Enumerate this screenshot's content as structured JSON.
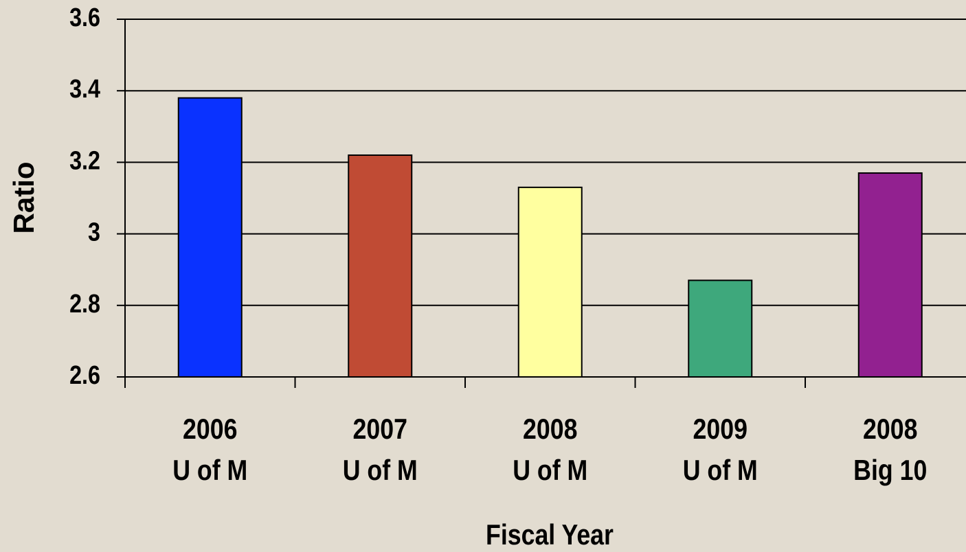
{
  "chart_data": {
    "type": "bar",
    "x_label": "Fiscal Year",
    "y_label": "Ratio",
    "categories": [
      [
        "2006",
        "U of M"
      ],
      [
        "2007",
        "U of M"
      ],
      [
        "2008",
        "U of M"
      ],
      [
        "2009",
        "U of M"
      ],
      [
        "2008",
        "Big 10"
      ]
    ],
    "values": [
      3.38,
      3.22,
      3.13,
      2.87,
      3.17
    ],
    "colors": [
      "#0a32ff",
      "#c04b34",
      "#ffff9f",
      "#3ea87c",
      "#922190"
    ],
    "ylim": [
      2.6,
      3.6
    ],
    "yticks": [
      2.6,
      2.8,
      3,
      3.2,
      3.4,
      3.6
    ],
    "grid": true
  }
}
